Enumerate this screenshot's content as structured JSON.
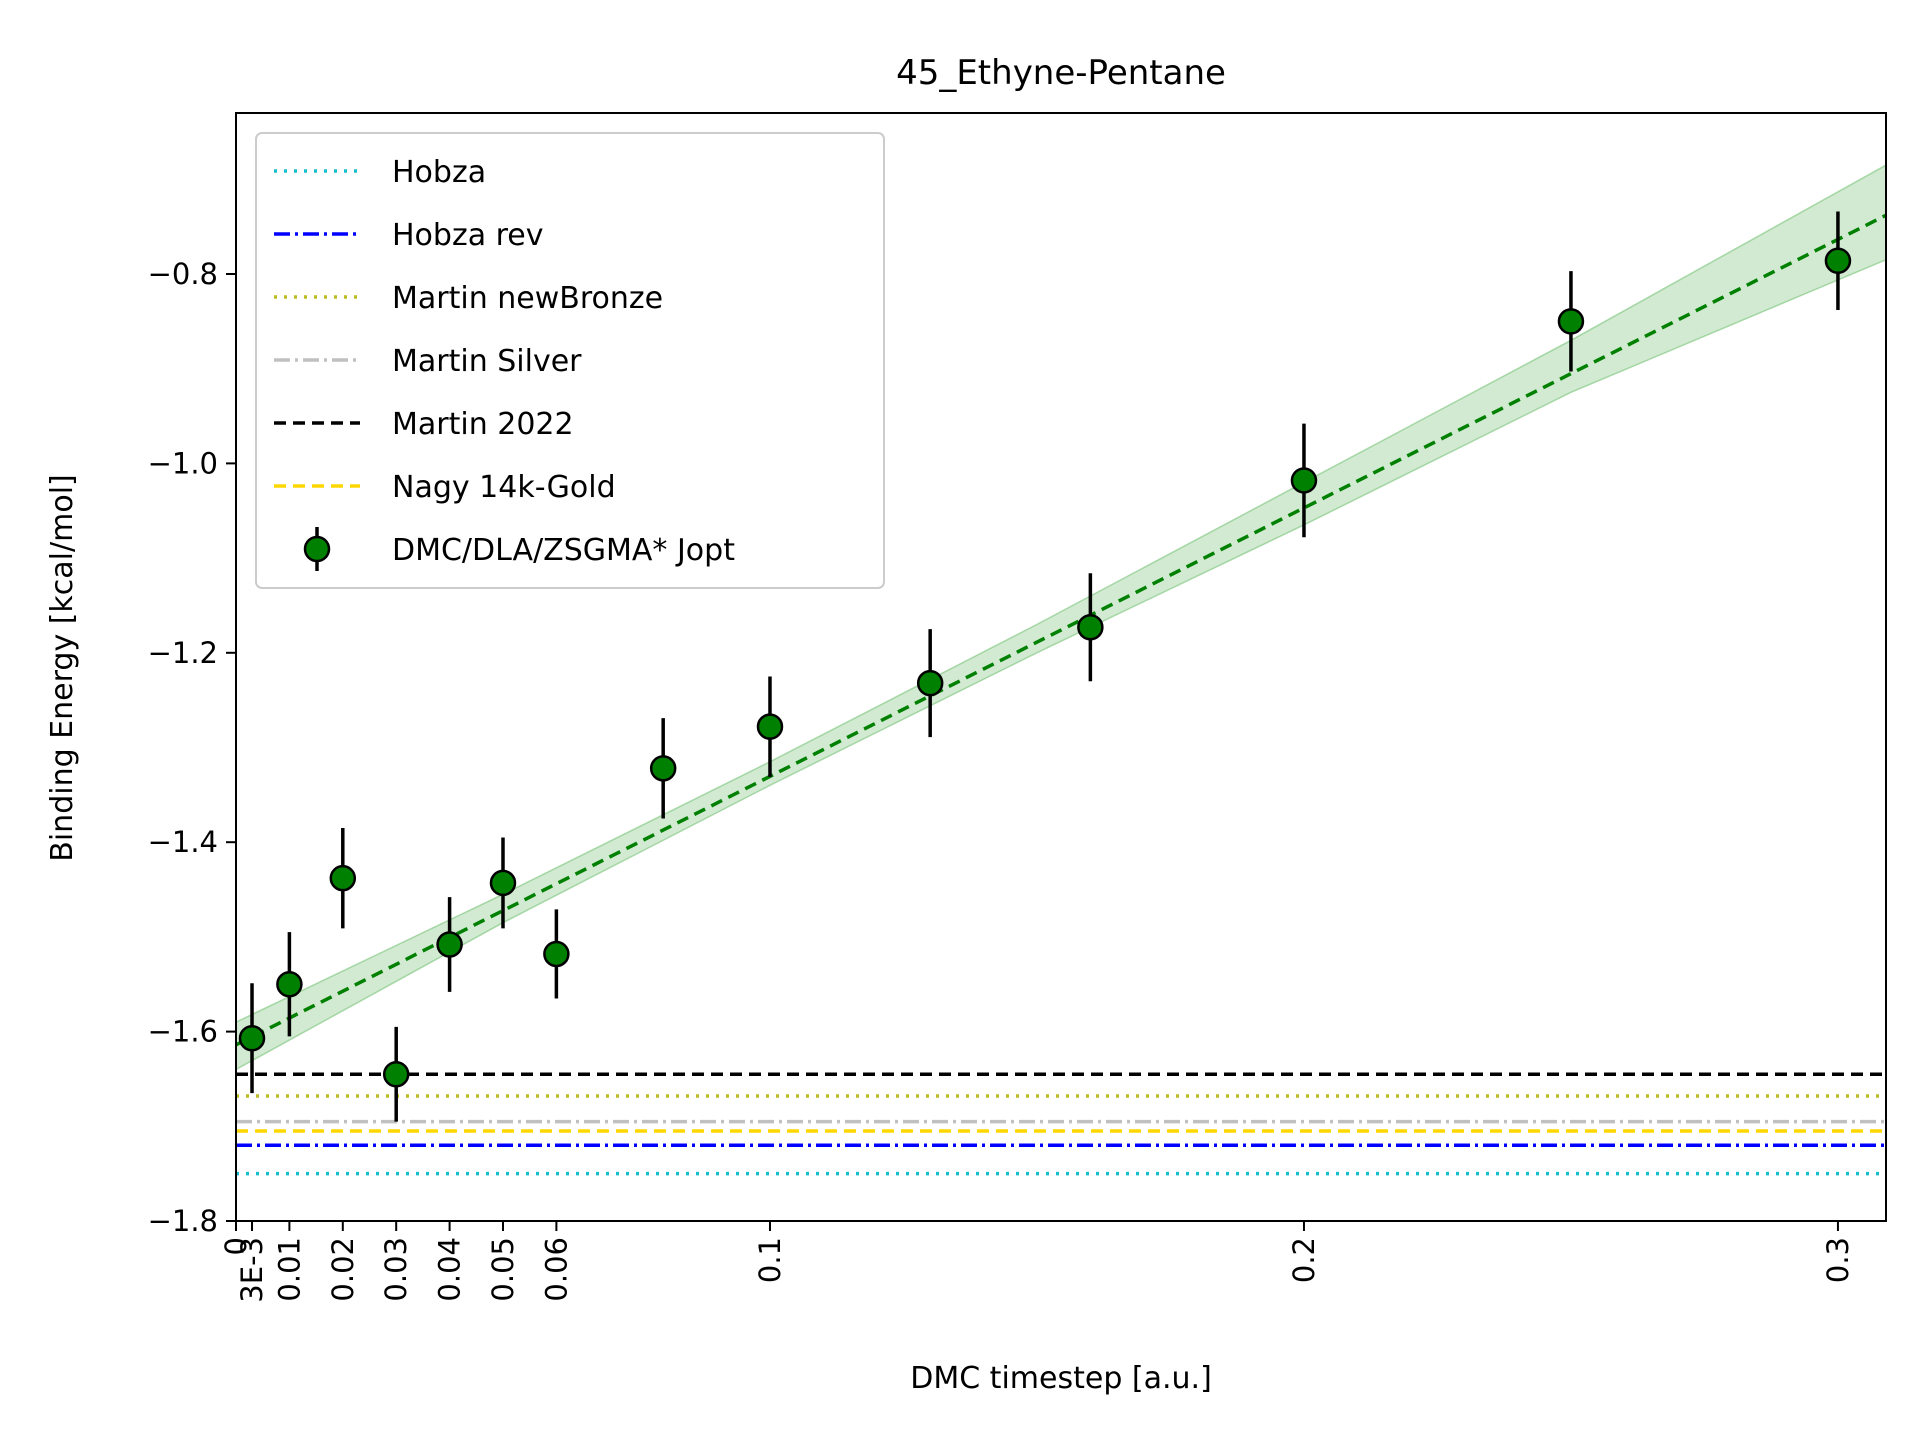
{
  "chart_data": {
    "type": "scatter",
    "title": "45_Ethyne-Pentane",
    "xlabel": "DMC timestep [a.u.]",
    "ylabel": "Binding Energy [kcal/mol]",
    "xlim": [
      0,
      0.309
    ],
    "ylim": [
      -1.8,
      -0.63
    ],
    "x_ticks": [
      {
        "value": 0,
        "label": "0"
      },
      {
        "value": 0.003,
        "label": "3E-3"
      },
      {
        "value": 0.01,
        "label": "0.01"
      },
      {
        "value": 0.02,
        "label": "0.02"
      },
      {
        "value": 0.03,
        "label": "0.03"
      },
      {
        "value": 0.04,
        "label": "0.04"
      },
      {
        "value": 0.05,
        "label": "0.05"
      },
      {
        "value": 0.06,
        "label": "0.06"
      },
      {
        "value": 0.1,
        "label": "0.1"
      },
      {
        "value": 0.2,
        "label": "0.2"
      },
      {
        "value": 0.3,
        "label": "0.3"
      }
    ],
    "y_ticks": [
      {
        "value": -0.8,
        "label": "−0.8"
      },
      {
        "value": -1.0,
        "label": "−1.0"
      },
      {
        "value": -1.2,
        "label": "−1.2"
      },
      {
        "value": -1.4,
        "label": "−1.4"
      },
      {
        "value": -1.6,
        "label": "−1.6"
      },
      {
        "value": -1.8,
        "label": "−1.8"
      }
    ],
    "grid": false,
    "legend_position": "top-left",
    "reference_lines": [
      {
        "name": "Hobza",
        "y": -1.75,
        "color": "#17becf",
        "style": "dotted"
      },
      {
        "name": "Hobza rev",
        "y": -1.72,
        "color": "#0000ff",
        "style": "dashdot"
      },
      {
        "name": "Martin newBronze",
        "y": -1.668,
        "color": "#bcbd22",
        "style": "dotted"
      },
      {
        "name": "Martin Silver",
        "y": -1.695,
        "color": "#c0c0c0",
        "style": "dashdot"
      },
      {
        "name": "Martin 2022",
        "y": -1.645,
        "color": "#000000",
        "style": "dashed"
      },
      {
        "name": "Nagy 14k-Gold",
        "y": -1.705,
        "color": "#ffd700",
        "style": "dashed"
      }
    ],
    "series": [
      {
        "name": "DMC/DLA/ZSGMA* Jopt",
        "color": "#008000",
        "x": [
          0.003,
          0.01,
          0.02,
          0.03,
          0.04,
          0.05,
          0.06,
          0.08,
          0.1,
          0.13,
          0.16,
          0.2,
          0.25,
          0.3
        ],
        "y": [
          -1.607,
          -1.55,
          -1.438,
          -1.645,
          -1.508,
          -1.443,
          -1.518,
          -1.322,
          -1.278,
          -1.232,
          -1.173,
          -1.018,
          -0.85,
          -0.786
        ],
        "yerr": [
          0.058,
          0.055,
          0.053,
          0.05,
          0.05,
          0.048,
          0.047,
          0.053,
          0.053,
          0.057,
          0.057,
          0.06,
          0.053,
          0.052
        ]
      }
    ],
    "fit": {
      "color": "#008000",
      "style": "dashed",
      "intercept": -1.614,
      "slope": 2.835,
      "band": {
        "x": [
          0,
          0.05,
          0.1,
          0.15,
          0.2,
          0.25,
          0.309
        ],
        "lower": [
          -1.64,
          -1.485,
          -1.34,
          -1.2,
          -1.065,
          -0.925,
          -0.785
        ],
        "upper": [
          -1.59,
          -1.455,
          -1.315,
          -1.17,
          -1.02,
          -0.87,
          -0.685
        ]
      }
    }
  }
}
